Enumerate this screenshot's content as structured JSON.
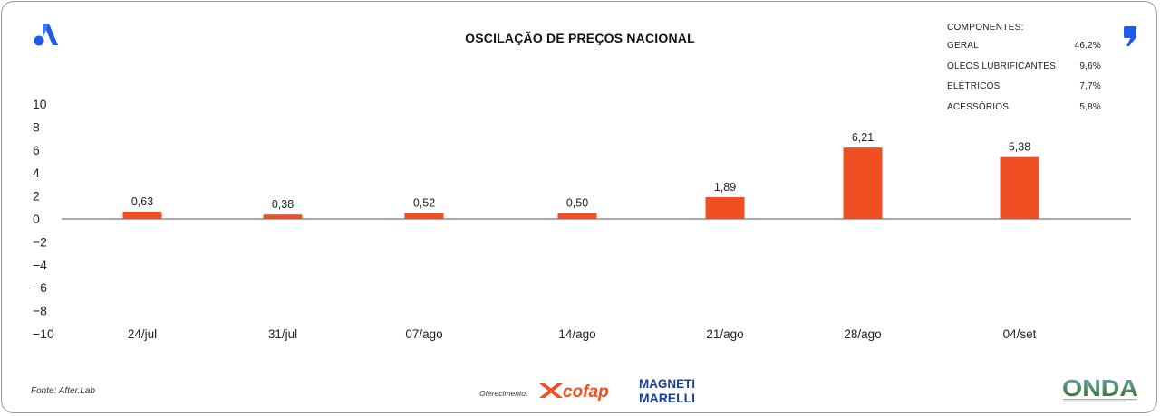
{
  "chart_data": {
    "type": "bar",
    "title": "OSCILAÇÃO DE PREÇOS NACIONAL",
    "categories": [
      "24/jul",
      "31/jul",
      "07/ago",
      "14/ago",
      "21/ago",
      "28/ago",
      "04/set"
    ],
    "values": [
      0.63,
      0.38,
      0.52,
      0.5,
      1.89,
      6.21,
      5.38
    ],
    "value_labels": [
      "0,63",
      "0,38",
      "0,52",
      "0,50",
      "1,89",
      "6,21",
      "5,38"
    ],
    "ylim": [
      -10,
      10
    ],
    "yticks": [
      10,
      8,
      6,
      4,
      2,
      0,
      -2,
      -4,
      -6,
      -8,
      -10
    ],
    "ytick_labels": [
      "10",
      "8",
      "6",
      "4",
      "2",
      "0",
      "−2",
      "−4",
      "−6",
      "−8",
      "−10"
    ],
    "bar_color": "#f04e23",
    "grid": false,
    "legend": "none"
  },
  "components": {
    "heading": "COMPONENTES:",
    "items": [
      {
        "label": "GERAL",
        "value": "46,2%"
      },
      {
        "label": "ÓLEOS LUBRIFICANTES",
        "value": "9,6%"
      },
      {
        "label": "ELÉTRICOS",
        "value": "7,7%"
      },
      {
        "label": "ACESSÓRIOS",
        "value": "5,8%"
      }
    ]
  },
  "footer": {
    "source": "Fonte: After.Lab",
    "sponsor_label": "Oferecimento:"
  },
  "logos": {
    "left_icon": "after-lab-a-icon",
    "right_icon": "comma-quote-icon",
    "cofap": "cofap",
    "magneti_marelli": [
      "MAGNETI",
      "MARELLI"
    ],
    "onda": "ONDA"
  },
  "colors": {
    "accent_blue": "#1e5bea",
    "bar_orange": "#f04e23",
    "marelli_blue": "#1a3f9a",
    "onda_green": "#3a7d44"
  }
}
